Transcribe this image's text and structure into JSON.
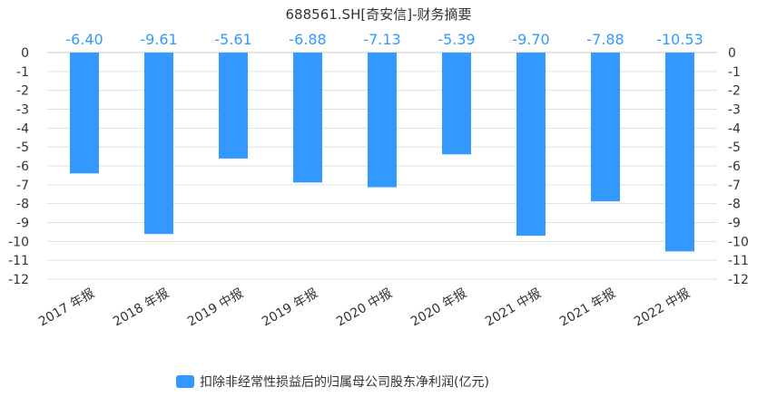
{
  "chart_data": {
    "type": "bar",
    "title": "688561.SH[奇安信]-财务摘要",
    "categories": [
      "2017 年报",
      "2018 年报",
      "2019 中报",
      "2019 年报",
      "2020 中报",
      "2020 年报",
      "2021 中报",
      "2021 年报",
      "2022 中报"
    ],
    "series": [
      {
        "name": "扣除非经常性损益后的归属母公司股东净利润(亿元)",
        "values": [
          -6.4,
          -9.61,
          -5.61,
          -6.88,
          -7.13,
          -5.39,
          -9.7,
          -7.88,
          -10.53
        ],
        "value_labels": [
          "-6.40",
          "-9.61",
          "-5.61",
          "-6.88",
          "-7.13",
          "-5.39",
          "-9.70",
          "-7.88",
          "-10.53"
        ]
      }
    ],
    "ylim": [
      -12,
      0
    ],
    "y_ticks": [
      0,
      -1,
      -2,
      -3,
      -4,
      -5,
      -6,
      -7,
      -8,
      -9,
      -10,
      -11,
      -12
    ],
    "y_ticks_right": [
      0,
      -1,
      -2,
      -3,
      -4,
      -5,
      -6,
      -7,
      -8,
      -9,
      -10,
      -11,
      -12
    ],
    "grid": true,
    "legend_position": "bottom-center",
    "colors": {
      "bar": "#3399ff",
      "data_label": "#3399ff",
      "grid": "#e0e0e0",
      "axis": "#cccccc"
    }
  }
}
